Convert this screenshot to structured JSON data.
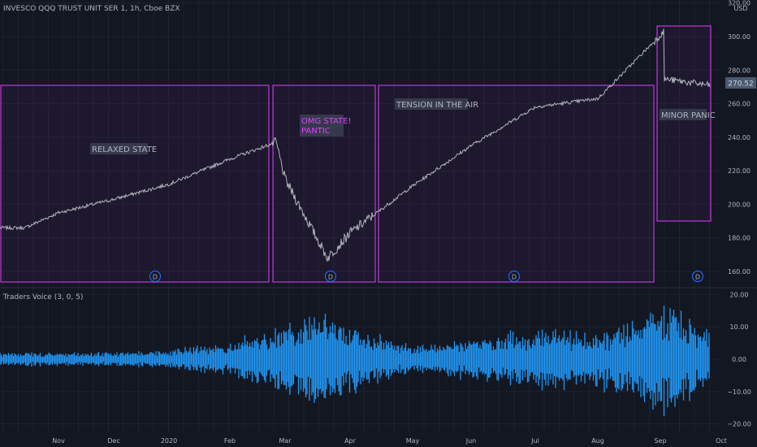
{
  "header": {
    "symbol_title": "INVESCO QQQ TRUST UNIT SER 1, 1h, Cboe BZX"
  },
  "price_axis": {
    "currency": "USD",
    "ticks": [
      "320.00",
      "300.00",
      "280.00",
      "260.00",
      "240.00",
      "220.00",
      "200.00",
      "180.00",
      "160.00"
    ],
    "last_price_label": "270.52"
  },
  "indicator": {
    "title": "Traders Voice (3, 0, 5)",
    "ticks": [
      "20.00",
      "10.00",
      "0.00",
      "−10.00",
      "−20.00"
    ]
  },
  "time_axis": {
    "labels": [
      "Nov",
      "Dec",
      "2020",
      "Feb",
      "Mar",
      "Apr",
      "May",
      "Jun",
      "Jul",
      "Aug",
      "Sep",
      "Oct"
    ]
  },
  "annotations": [
    {
      "text": "RELAXED STATE",
      "color": "#b2b5be"
    },
    {
      "text_line1": "OMG STATE!",
      "text_line2": "PANTIC",
      "color": "#e040fb"
    },
    {
      "text": "TENSION IN THE AIR",
      "color": "#b2b5be"
    },
    {
      "text": "MINOR PANIC",
      "color": "#b2b5be"
    }
  ],
  "dividend_marker": "D",
  "colors": {
    "background": "#131722",
    "grid": "#1e222d",
    "box_stroke": "#c038e0",
    "box_fill": "rgba(156, 39, 176, 0.08)",
    "price_line": "#b2b5be",
    "oscillator": "#2196f3",
    "axis_text": "#b2b5be"
  },
  "chart_data": [
    {
      "type": "line",
      "title": "INVESCO QQQ TRUST UNIT SER 1, 1h, Cboe BZX",
      "ylabel": "USD",
      "ylim": [
        150,
        320
      ],
      "x_labels": [
        "Nov",
        "Dec",
        "2020",
        "Feb",
        "Mar",
        "Apr",
        "May",
        "Jun",
        "Jul",
        "Aug",
        "Sep",
        "Oct"
      ],
      "series": [
        {
          "values_by_month_start": [
            {
              "x": "2019-10-15",
              "y": 186
            },
            {
              "x": "Nov",
              "y": 195
            },
            {
              "x": "Dec",
              "y": 203
            },
            {
              "x": "2020",
              "y": 212
            },
            {
              "x": "Feb",
              "y": 227
            },
            {
              "x": "2020-02-19",
              "y": 237
            },
            {
              "x": "Mar",
              "y": 215
            },
            {
              "x": "2020-03-16",
              "y": 168
            },
            {
              "x": "Apr",
              "y": 183
            },
            {
              "x": "May",
              "y": 211
            },
            {
              "x": "Jun",
              "y": 235
            },
            {
              "x": "Jul",
              "y": 258
            },
            {
              "x": "Aug",
              "y": 263
            },
            {
              "x": "2020-09-02",
              "y": 303
            },
            {
              "x": "Sep",
              "y": 275
            },
            {
              "x": "2020-09-28",
              "y": 270.52
            }
          ]
        }
      ],
      "annotations": [
        "RELAXED STATE",
        "OMG STATE! PANTIC",
        "TENSION IN THE AIR",
        "MINOR PANIC"
      ]
    },
    {
      "type": "area",
      "title": "Traders Voice (3, 0, 5)",
      "ylim": [
        -22,
        22
      ],
      "x_labels": [
        "Nov",
        "Dec",
        "2020",
        "Feb",
        "Mar",
        "Apr",
        "May",
        "Jun",
        "Jul",
        "Aug",
        "Sep",
        "Oct"
      ],
      "amplitude_envelope": [
        {
          "x": "2019-10-15",
          "y": 2
        },
        {
          "x": "Nov",
          "y": 2
        },
        {
          "x": "Dec",
          "y": 2
        },
        {
          "x": "2020",
          "y": 3
        },
        {
          "x": "Feb",
          "y": 5
        },
        {
          "x": "2020-02-25",
          "y": 11
        },
        {
          "x": "2020-03-16",
          "y": 15
        },
        {
          "x": "Apr",
          "y": 10
        },
        {
          "x": "May",
          "y": 4
        },
        {
          "x": "Jun",
          "y": 6
        },
        {
          "x": "Jul",
          "y": 9
        },
        {
          "x": "Aug",
          "y": 8
        },
        {
          "x": "2020-09-03",
          "y": 16
        },
        {
          "x": "2020-09-28",
          "y": 8
        }
      ]
    }
  ]
}
